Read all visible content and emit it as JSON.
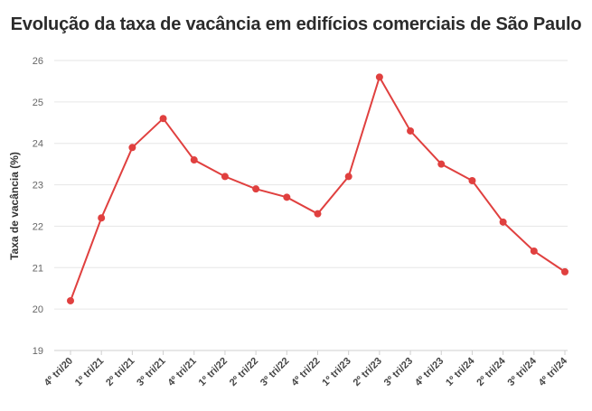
{
  "chart_data": {
    "type": "line",
    "title": "Evolução da taxa de vacância em edifícios comerciais de São Paulo",
    "xlabel": "",
    "ylabel": "Taxa de vacância (%)",
    "categories": [
      "4º tri/20",
      "1º tri/21",
      "2º tri/21",
      "3º tri/21",
      "4º tri/21",
      "1º tri/22",
      "2º tri/22",
      "3º tri/22",
      "4º tri/22",
      "1º tri/23",
      "2º tri/23",
      "3º tri/23",
      "4º tri/23",
      "1º tri/24",
      "2º tri/24",
      "3º tri/24",
      "4º tri/24"
    ],
    "series": [
      {
        "values": [
          20.2,
          22.2,
          23.9,
          24.6,
          23.6,
          23.2,
          22.9,
          22.7,
          22.3,
          23.2,
          25.6,
          24.3,
          23.5,
          23.1,
          22.1,
          21.4,
          20.9
        ],
        "color": "#e0403f"
      }
    ],
    "ylim": [
      19,
      26
    ],
    "yticks": [
      19,
      20,
      21,
      22,
      23,
      24,
      25,
      26
    ],
    "grid": true,
    "legend": "none"
  }
}
